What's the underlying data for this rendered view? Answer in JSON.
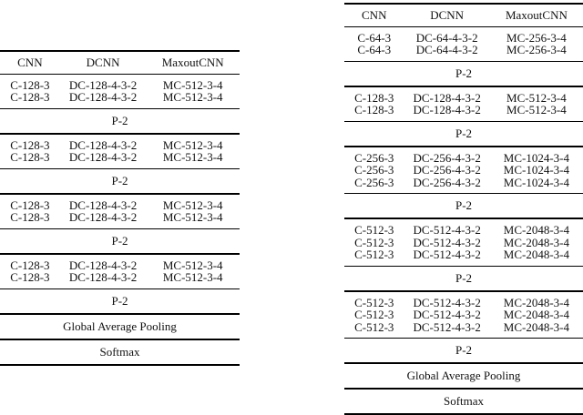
{
  "colors": {
    "background": "#ffffff",
    "text": "#111111",
    "rule": "#000000"
  },
  "tables": [
    {
      "id": "left",
      "name": "cnn-architecture-table-small",
      "columns": [
        "CNN",
        "DCNN",
        "MaxoutCNN"
      ],
      "sections": [
        {
          "type": "rows",
          "rows": [
            [
              "C-128-3",
              "DC-128-4-3-2",
              "MC-512-3-4"
            ],
            [
              "C-128-3",
              "DC-128-4-3-2",
              "MC-512-3-4"
            ]
          ]
        },
        {
          "type": "label",
          "label": "P-2"
        },
        {
          "type": "rows",
          "rows": [
            [
              "C-128-3",
              "DC-128-4-3-2",
              "MC-512-3-4"
            ],
            [
              "C-128-3",
              "DC-128-4-3-2",
              "MC-512-3-4"
            ]
          ]
        },
        {
          "type": "label",
          "label": "P-2"
        },
        {
          "type": "rows",
          "rows": [
            [
              "C-128-3",
              "DC-128-4-3-2",
              "MC-512-3-4"
            ],
            [
              "C-128-3",
              "DC-128-4-3-2",
              "MC-512-3-4"
            ]
          ]
        },
        {
          "type": "label",
          "label": "P-2"
        },
        {
          "type": "rows",
          "rows": [
            [
              "C-128-3",
              "DC-128-4-3-2",
              "MC-512-3-4"
            ],
            [
              "C-128-3",
              "DC-128-4-3-2",
              "MC-512-3-4"
            ]
          ]
        },
        {
          "type": "label",
          "label": "P-2"
        },
        {
          "type": "label",
          "label": "Global Average Pooling"
        },
        {
          "type": "label",
          "label": "Softmax"
        }
      ]
    },
    {
      "id": "right",
      "name": "cnn-architecture-table-large",
      "columns": [
        "CNN",
        "DCNN",
        "MaxoutCNN"
      ],
      "sections": [
        {
          "type": "rows",
          "rows": [
            [
              "C-64-3",
              "DC-64-4-3-2",
              "MC-256-3-4"
            ],
            [
              "C-64-3",
              "DC-64-4-3-2",
              "MC-256-3-4"
            ]
          ]
        },
        {
          "type": "label",
          "label": "P-2"
        },
        {
          "type": "rows",
          "rows": [
            [
              "C-128-3",
              "DC-128-4-3-2",
              "MC-512-3-4"
            ],
            [
              "C-128-3",
              "DC-128-4-3-2",
              "MC-512-3-4"
            ]
          ]
        },
        {
          "type": "label",
          "label": "P-2"
        },
        {
          "type": "rows",
          "rows": [
            [
              "C-256-3",
              "DC-256-4-3-2",
              "MC-1024-3-4"
            ],
            [
              "C-256-3",
              "DC-256-4-3-2",
              "MC-1024-3-4"
            ],
            [
              "C-256-3",
              "DC-256-4-3-2",
              "MC-1024-3-4"
            ]
          ]
        },
        {
          "type": "label",
          "label": "P-2"
        },
        {
          "type": "rows",
          "rows": [
            [
              "C-512-3",
              "DC-512-4-3-2",
              "MC-2048-3-4"
            ],
            [
              "C-512-3",
              "DC-512-4-3-2",
              "MC-2048-3-4"
            ],
            [
              "C-512-3",
              "DC-512-4-3-2",
              "MC-2048-3-4"
            ]
          ]
        },
        {
          "type": "label",
          "label": "P-2"
        },
        {
          "type": "rows",
          "rows": [
            [
              "C-512-3",
              "DC-512-4-3-2",
              "MC-2048-3-4"
            ],
            [
              "C-512-3",
              "DC-512-4-3-2",
              "MC-2048-3-4"
            ],
            [
              "C-512-3",
              "DC-512-4-3-2",
              "MC-2048-3-4"
            ]
          ]
        },
        {
          "type": "label",
          "label": "P-2"
        },
        {
          "type": "label",
          "label": "Global Average Pooling"
        },
        {
          "type": "label",
          "label": "Softmax"
        }
      ]
    }
  ]
}
